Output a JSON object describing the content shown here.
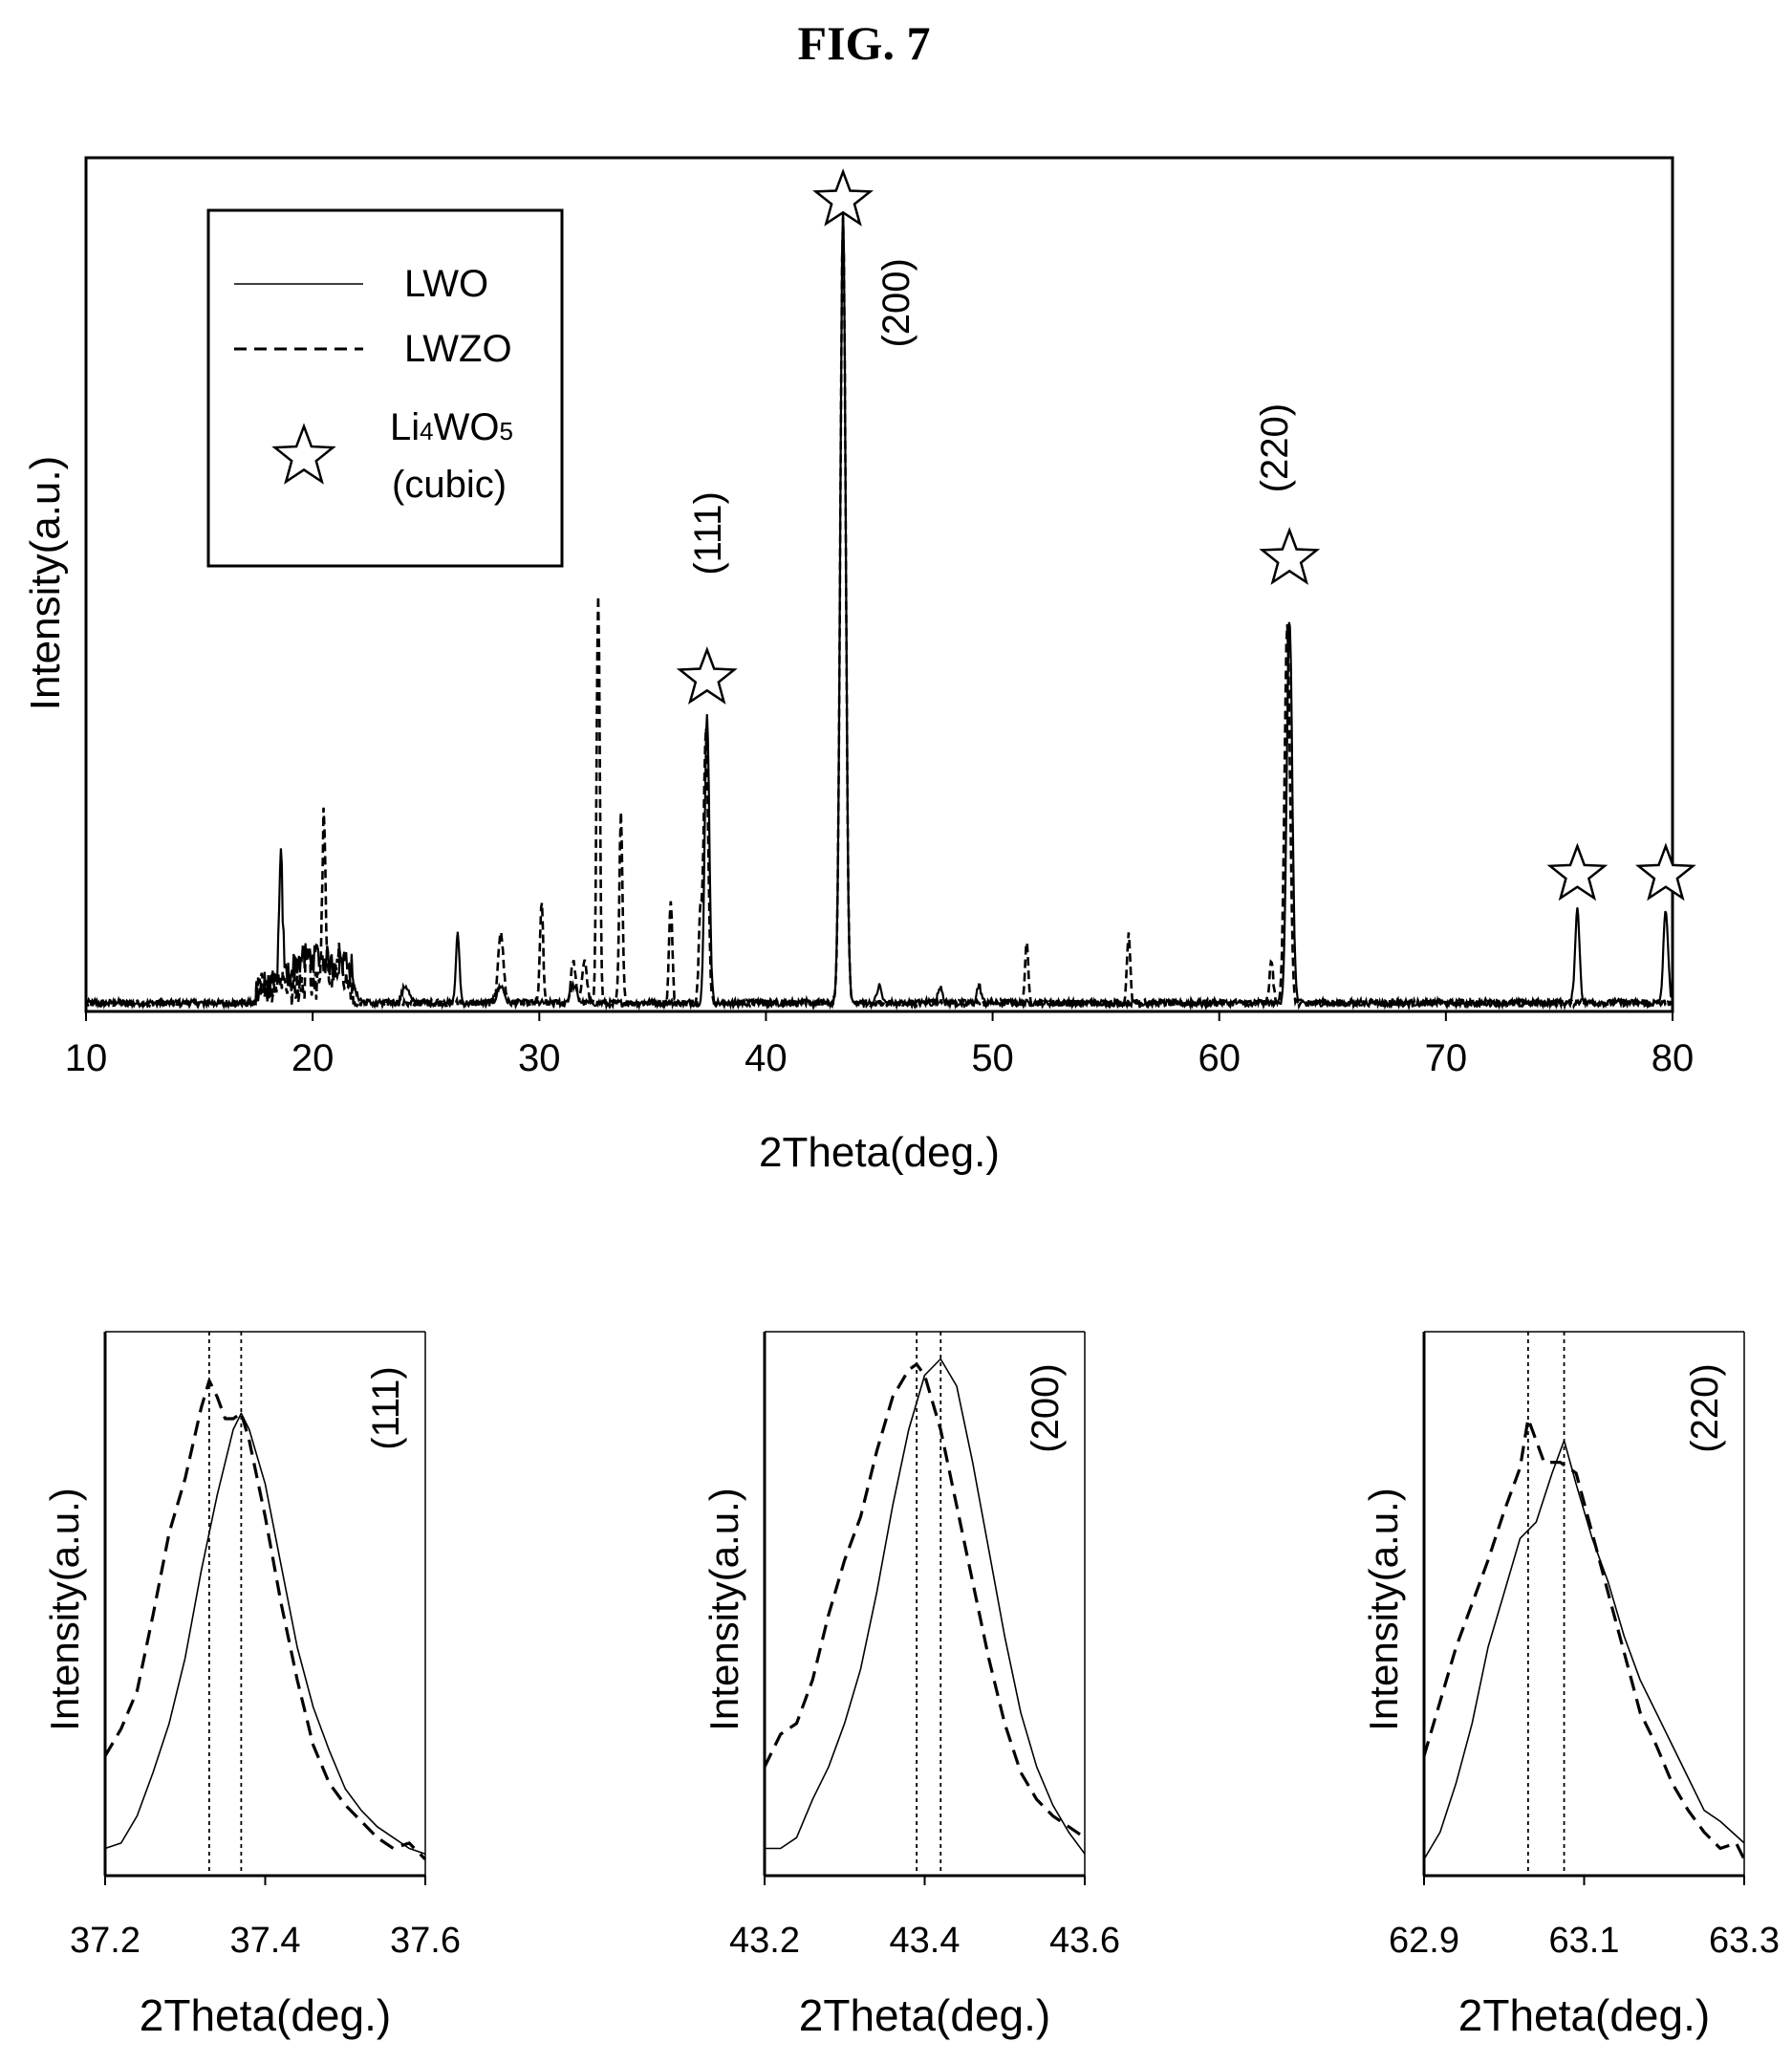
{
  "figure_title": "FIG. 7",
  "chart_data": [
    {
      "type": "line",
      "xlabel": "2Theta(deg.)",
      "ylabel": "Intensity(a.u.)",
      "xlim": [
        10,
        80
      ],
      "ylim": [
        0,
        100
      ],
      "xticks": [
        10,
        20,
        30,
        40,
        50,
        60,
        70,
        80
      ],
      "legend": {
        "position": "top-left",
        "entries": [
          {
            "label": "LWO",
            "style": "solid"
          },
          {
            "label": "LWZO",
            "style": "dashed"
          },
          {
            "label_main": "Li",
            "label_sub1": "4",
            "label_mid": "WO",
            "label_sub2": "5",
            "label_line2": "(cubic)",
            "style": "star"
          }
        ]
      },
      "series": [
        {
          "name": "LWO",
          "style": "solid",
          "noise": 0.8,
          "peaks": [
            [
              18.6,
              14,
              0.08
            ],
            [
              19.5,
              3,
              0.5
            ],
            [
              20.5,
              3,
              0.5
            ],
            [
              21.5,
              3,
              0.3
            ],
            [
              24.1,
              2,
              0.15
            ],
            [
              26.4,
              8,
              0.08
            ],
            [
              28.3,
              2,
              0.15
            ],
            [
              31.5,
              2,
              0.15
            ],
            [
              37.4,
              34,
              0.1
            ],
            [
              43.4,
              93,
              0.12
            ],
            [
              45.0,
              2,
              0.1
            ],
            [
              47.7,
              2,
              0.1
            ],
            [
              49.4,
              2,
              0.1
            ],
            [
              63.1,
              45,
              0.12
            ],
            [
              75.8,
              11,
              0.1
            ],
            [
              79.7,
              11,
              0.1
            ]
          ]
        },
        {
          "name": "LWZO",
          "style": "dashed",
          "noise": 0.8,
          "peaks": [
            [
              19.8,
              5,
              0.08
            ],
            [
              20.5,
              21,
              0.07
            ],
            [
              21.2,
              4,
              0.15
            ],
            [
              28.3,
              8,
              0.12
            ],
            [
              30.1,
              12,
              0.07
            ],
            [
              31.5,
              5,
              0.1
            ],
            [
              32.0,
              5,
              0.1
            ],
            [
              32.6,
              48,
              0.07
            ],
            [
              33.6,
              22,
              0.07
            ],
            [
              35.8,
              12,
              0.07
            ],
            [
              37.1,
              10,
              0.07
            ],
            [
              37.35,
              32,
              0.1
            ],
            [
              43.4,
              92,
              0.12
            ],
            [
              51.5,
              7,
              0.07
            ],
            [
              56.0,
              8,
              0.07
            ],
            [
              62.3,
              5,
              0.08
            ],
            [
              63.0,
              44,
              0.12
            ]
          ]
        }
      ],
      "star_markers": [
        {
          "x": 37.4,
          "y": 39
        },
        {
          "x": 43.4,
          "y": 95
        },
        {
          "x": 63.1,
          "y": 53
        },
        {
          "x": 75.8,
          "y": 16
        },
        {
          "x": 79.7,
          "y": 16
        }
      ],
      "peak_labels": [
        {
          "text": "(111)",
          "x": 38.0,
          "y": 56
        },
        {
          "text": "(200)",
          "x": 46.3,
          "y": 83
        },
        {
          "text": "(220)",
          "x": 63.0,
          "y": 66
        }
      ]
    },
    {
      "type": "line",
      "xlabel": "2Theta(deg.)",
      "ylabel": "Intensity(a.u.)",
      "xlim": [
        37.2,
        37.6
      ],
      "xtick_labels": [
        "37.2",
        "37.4",
        "37.6"
      ],
      "annotation": "(111)",
      "vlines": [
        37.33,
        37.37
      ],
      "series": [
        {
          "name": "LWO",
          "style": "solid",
          "x": [
            37.2,
            37.22,
            37.24,
            37.26,
            37.28,
            37.3,
            37.32,
            37.34,
            37.36,
            37.37,
            37.38,
            37.4,
            37.42,
            37.44,
            37.46,
            37.48,
            37.5,
            37.52,
            37.54,
            37.56,
            37.58,
            37.6
          ],
          "y": [
            5,
            6,
            11,
            19,
            28,
            40,
            56,
            70,
            82,
            85,
            82,
            72,
            57,
            42,
            31,
            23,
            16,
            12,
            9,
            7,
            5,
            4
          ]
        },
        {
          "name": "LWZO",
          "style": "dashed",
          "x": [
            37.2,
            37.22,
            37.24,
            37.26,
            37.28,
            37.3,
            37.32,
            37.33,
            37.34,
            37.35,
            37.36,
            37.37,
            37.38,
            37.4,
            37.42,
            37.44,
            37.46,
            37.48,
            37.5,
            37.52,
            37.54,
            37.56,
            37.58,
            37.6
          ],
          "y": [
            22,
            27,
            34,
            48,
            63,
            73,
            86,
            91,
            88,
            84,
            84,
            85,
            80,
            66,
            50,
            36,
            24,
            17,
            13,
            10,
            7,
            5,
            6,
            3
          ]
        }
      ]
    },
    {
      "type": "line",
      "xlabel": "2Theta(deg.)",
      "ylabel": "Intensity(a.u.)",
      "xlim": [
        43.2,
        43.6
      ],
      "xtick_labels": [
        "43.2",
        "43.4",
        "43.6"
      ],
      "annotation": "(200)",
      "vlines": [
        43.39,
        43.42
      ],
      "series": [
        {
          "name": "LWO",
          "style": "solid",
          "x": [
            43.2,
            43.22,
            43.24,
            43.26,
            43.28,
            43.3,
            43.32,
            43.34,
            43.36,
            43.38,
            43.4,
            43.42,
            43.44,
            43.46,
            43.48,
            43.5,
            43.52,
            43.54,
            43.56,
            43.58,
            43.6
          ],
          "y": [
            5,
            5,
            7,
            14,
            20,
            28,
            38,
            52,
            68,
            82,
            92,
            95,
            90,
            76,
            60,
            44,
            30,
            20,
            13,
            8,
            4
          ]
        },
        {
          "name": "LWZO",
          "style": "dashed",
          "x": [
            43.2,
            43.22,
            43.24,
            43.26,
            43.28,
            43.3,
            43.32,
            43.34,
            43.36,
            43.38,
            43.39,
            43.4,
            43.42,
            43.44,
            43.46,
            43.48,
            43.5,
            43.52,
            43.54,
            43.56,
            43.58,
            43.6
          ],
          "y": [
            20,
            26,
            28,
            36,
            48,
            58,
            66,
            78,
            88,
            93,
            94,
            92,
            82,
            68,
            54,
            40,
            28,
            19,
            14,
            11,
            9,
            7
          ]
        }
      ]
    },
    {
      "type": "line",
      "xlabel": "2Theta(deg.)",
      "ylabel": "Intensity(a.u.)",
      "xlim": [
        62.9,
        63.3
      ],
      "xtick_labels": [
        "62.9",
        "63.1",
        "63.3"
      ],
      "annotation": "(220)",
      "vlines": [
        63.03,
        63.075
      ],
      "series": [
        {
          "name": "LWO",
          "style": "solid",
          "x": [
            62.9,
            62.92,
            62.94,
            62.96,
            62.98,
            63.0,
            63.02,
            63.04,
            63.06,
            63.075,
            63.09,
            63.11,
            63.13,
            63.15,
            63.17,
            63.19,
            63.21,
            63.23,
            63.25,
            63.27,
            63.3
          ],
          "y": [
            3,
            8,
            17,
            28,
            42,
            52,
            62,
            65,
            74,
            80,
            72,
            62,
            54,
            44,
            36,
            30,
            24,
            18,
            12,
            10,
            6
          ]
        },
        {
          "name": "LWZO",
          "style": "dashed",
          "x": [
            62.9,
            62.92,
            62.94,
            62.96,
            62.98,
            63.0,
            63.02,
            63.03,
            63.04,
            63.05,
            63.07,
            63.09,
            63.11,
            63.13,
            63.15,
            63.17,
            63.19,
            63.21,
            63.23,
            63.25,
            63.27,
            63.29,
            63.3
          ],
          "y": [
            22,
            32,
            42,
            50,
            58,
            67,
            75,
            84,
            80,
            76,
            76,
            74,
            63,
            52,
            41,
            30,
            24,
            17,
            12,
            8,
            5,
            6,
            3
          ]
        }
      ]
    }
  ]
}
